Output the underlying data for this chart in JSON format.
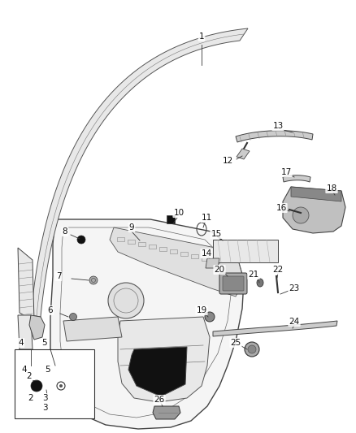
{
  "bg_color": "#ffffff",
  "label_fontsize": 7.5,
  "label_color": "#111111",
  "line_color": "#333333",
  "fill_light": "#e8e8e8",
  "fill_mid": "#cccccc",
  "fill_dark": "#999999",
  "fill_black": "#111111"
}
